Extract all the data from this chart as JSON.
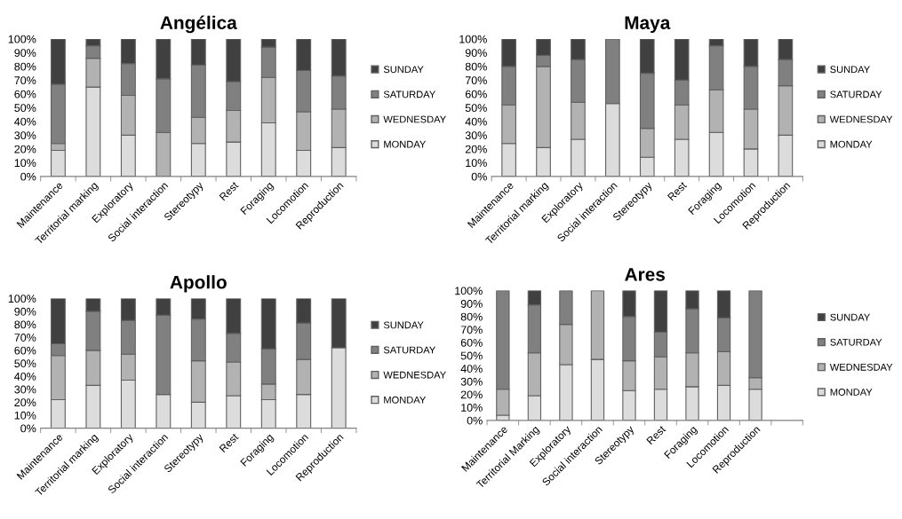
{
  "chart_data": [
    {
      "type": "bar",
      "title": "Angélica",
      "stacked": true,
      "legend": "right",
      "grid": false,
      "categories": [
        "Maintenance",
        "Territorial marking",
        "Exploratory",
        "Social interaction",
        "Stereotypy",
        "Rest",
        "Foraging",
        "Locomotion",
        "Reproduction"
      ],
      "ylim": [
        0,
        100
      ],
      "yticks": [
        {
          "value": 0,
          "label": "0%"
        },
        {
          "value": 10,
          "label": "10%"
        },
        {
          "value": 20,
          "label": "20%"
        },
        {
          "value": 30,
          "label": "30%"
        },
        {
          "value": 40,
          "label": "40%"
        },
        {
          "value": 50,
          "label": "50%"
        },
        {
          "value": 60,
          "label": "60%"
        },
        {
          "value": 70,
          "label": "70%"
        },
        {
          "value": 80,
          "label": "80%"
        },
        {
          "value": 90,
          "label": "90%"
        },
        {
          "value": 100,
          "label": "100%"
        }
      ],
      "series": [
        {
          "name": "MONDAY",
          "color": "#dcdcdc",
          "values": [
            19,
            65,
            30,
            0,
            24,
            25,
            39,
            19,
            21
          ]
        },
        {
          "name": "WEDNESDAY",
          "color": "#b2b2b2",
          "values": [
            5,
            21,
            29,
            32,
            19,
            23,
            33,
            28,
            28
          ]
        },
        {
          "name": "SATURDAY",
          "color": "#808080",
          "values": [
            43,
            9,
            23,
            39,
            38,
            21,
            22,
            30,
            24
          ]
        },
        {
          "name": "SUNDAY",
          "color": "#404040",
          "values": [
            33,
            5,
            18,
            29,
            19,
            31,
            6,
            23,
            27
          ]
        }
      ]
    },
    {
      "type": "bar",
      "title": "Maya",
      "stacked": true,
      "legend": "right",
      "grid": false,
      "categories": [
        "Maintenance",
        "Territorial marking",
        "Exploratory",
        "Social interaction",
        "Stereotypy",
        "Rest",
        "Foraging",
        "Locomotion",
        "Reproduction"
      ],
      "ylim": [
        0,
        100
      ],
      "yticks": [
        {
          "value": 0,
          "label": "0%"
        },
        {
          "value": 10,
          "label": "10%"
        },
        {
          "value": 20,
          "label": "20%"
        },
        {
          "value": 30,
          "label": "30%"
        },
        {
          "value": 40,
          "label": "40%"
        },
        {
          "value": 50,
          "label": "50%"
        },
        {
          "value": 60,
          "label": "60%"
        },
        {
          "value": 70,
          "label": "70%"
        },
        {
          "value": 80,
          "label": "80%"
        },
        {
          "value": 90,
          "label": "90%"
        },
        {
          "value": 100,
          "label": "100%"
        }
      ],
      "series": [
        {
          "name": "MONDAY",
          "color": "#dcdcdc",
          "values": [
            24,
            21,
            27,
            53,
            14,
            27,
            32,
            20,
            30
          ]
        },
        {
          "name": "WEDNESDAY",
          "color": "#b2b2b2",
          "values": [
            28,
            59,
            27,
            0,
            21,
            25,
            31,
            29,
            36
          ]
        },
        {
          "name": "SATURDAY",
          "color": "#808080",
          "values": [
            28,
            8,
            31,
            47,
            40,
            18,
            32,
            31,
            19
          ]
        },
        {
          "name": "SUNDAY",
          "color": "#404040",
          "values": [
            20,
            12,
            15,
            0,
            25,
            30,
            5,
            20,
            15
          ]
        }
      ]
    },
    {
      "type": "bar",
      "title": "Apollo",
      "stacked": true,
      "legend": "right",
      "grid": false,
      "categories": [
        "Maintenance",
        "Territorial marking",
        "Exploratory",
        "Social interaction",
        "Stereotypy",
        "Rest",
        "Foraging",
        "Locomotion",
        "Reproduction"
      ],
      "ylim": [
        0,
        100
      ],
      "yticks": [
        {
          "value": 0,
          "label": "0%"
        },
        {
          "value": 10,
          "label": "10%"
        },
        {
          "value": 20,
          "label": "20%"
        },
        {
          "value": 30,
          "label": "30%"
        },
        {
          "value": 40,
          "label": "40%"
        },
        {
          "value": 50,
          "label": "50%"
        },
        {
          "value": 60,
          "label": "60%"
        },
        {
          "value": 70,
          "label": "70%"
        },
        {
          "value": 80,
          "label": "80%"
        },
        {
          "value": 90,
          "label": "90%"
        },
        {
          "value": 100,
          "label": "100%"
        }
      ],
      "series": [
        {
          "name": "MONDAY",
          "color": "#dcdcdc",
          "values": [
            22,
            33,
            37,
            26,
            20,
            25,
            22,
            26,
            62
          ]
        },
        {
          "name": "WEDNESDAY",
          "color": "#b2b2b2",
          "values": [
            34,
            27,
            20,
            0,
            32,
            26,
            12,
            27,
            0
          ]
        },
        {
          "name": "SATURDAY",
          "color": "#808080",
          "values": [
            9,
            30,
            26,
            61,
            32,
            22,
            27,
            28,
            0
          ]
        },
        {
          "name": "SUNDAY",
          "color": "#404040",
          "values": [
            35,
            10,
            17,
            13,
            16,
            27,
            39,
            19,
            38
          ]
        }
      ]
    },
    {
      "type": "bar",
      "title": "Ares",
      "stacked": true,
      "legend": "right",
      "grid": false,
      "categories": [
        "Maintenance",
        "Territorial Marking",
        "Exploratory",
        "Social interaction",
        "Stereotypy",
        "Rest",
        "Foraging",
        "Locomotion",
        "Reproduction",
        null
      ],
      "ylim": [
        0,
        100
      ],
      "yticks": [
        {
          "value": 0,
          "label": "0%"
        },
        {
          "value": 10,
          "label": "10%"
        },
        {
          "value": 20,
          "label": "20%"
        },
        {
          "value": 30,
          "label": "30%"
        },
        {
          "value": 40,
          "label": "40%"
        },
        {
          "value": 50,
          "label": "50%"
        },
        {
          "value": 60,
          "label": "60%"
        },
        {
          "value": 70,
          "label": "70%"
        },
        {
          "value": 80,
          "label": "80%"
        },
        {
          "value": 90,
          "label": "90%"
        },
        {
          "value": 100,
          "label": "100%"
        }
      ],
      "series": [
        {
          "name": "MONDAY",
          "color": "#dcdcdc",
          "values": [
            4,
            19,
            43,
            47,
            23,
            24,
            26,
            27,
            24,
            null
          ]
        },
        {
          "name": "WEDNESDAY",
          "color": "#b2b2b2",
          "values": [
            20,
            33,
            31,
            53,
            23,
            25,
            26,
            26,
            9,
            null
          ]
        },
        {
          "name": "SATURDAY",
          "color": "#808080",
          "values": [
            76,
            37,
            26,
            0,
            34,
            19,
            34,
            26,
            67,
            null
          ]
        },
        {
          "name": "SUNDAY",
          "color": "#404040",
          "values": [
            0,
            11,
            0,
            0,
            20,
            32,
            14,
            21,
            0,
            null
          ]
        }
      ]
    }
  ]
}
